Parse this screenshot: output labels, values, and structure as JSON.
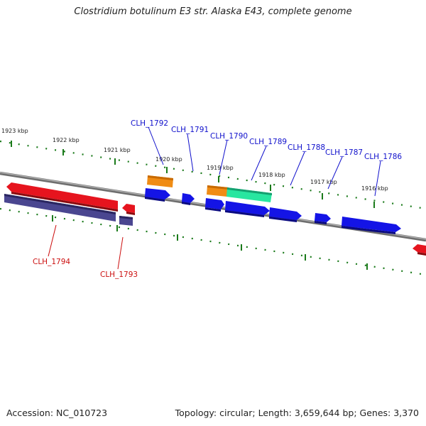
{
  "title": "Clostridium botulinum E3 str. Alaska E43, complete genome",
  "footer": {
    "accession": "Accession: NC_010723",
    "summary": "Topology: circular; Length: 3,659,644 bp; Genes: 3,370"
  },
  "kbp_labels": [
    "1923 kbp",
    "1922 kbp",
    "1921 kbp",
    "1920 kbp",
    "1919 kbp",
    "1918 kbp",
    "1917 kbp",
    "1916 kbp"
  ],
  "genes": {
    "forward": [
      "CLH_1792",
      "CLH_1791",
      "CLH_1790",
      "CLH_1789",
      "CLH_1788",
      "CLH_1787",
      "CLH_1786"
    ],
    "reverse": [
      "CLH_1794",
      "CLH_1793"
    ]
  },
  "colors": {
    "backbone": "#8c8c8c",
    "ticks": "#1a7a1a",
    "blue_gene": "#1414e6",
    "red_gene": "#e6141e",
    "purple_gene": "#4a4690",
    "orange_gene": "#f08c14",
    "teal_gene": "#28e6a0"
  }
}
